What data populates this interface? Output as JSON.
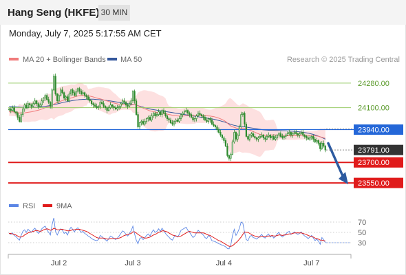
{
  "header": {
    "title": "Hang Seng (HKFE)",
    "timeframe": "30 MIN",
    "datetime": "Monday, July 7, 2025 5:17:55 AM CET"
  },
  "legend": {
    "ma20": "MA 20 + Bollinger Bands",
    "ma50": "MA 50",
    "credit": "Research © 2025 Trading Central",
    "rsi": "RSI",
    "ma9": "9MA"
  },
  "colors": {
    "ma20": "#f07b7b",
    "ma50": "#34579c",
    "band": "#fde0e0",
    "candle": "#2e8b2e",
    "resistance": "#99cc66",
    "pivot": "#2467d8",
    "support": "#e01b1b",
    "price": "#333333",
    "rsi": "#5b86e5",
    "rsi_ma": "#e01b1b",
    "arrow": "#2c5aa0"
  },
  "chart_data": [
    {
      "type": "candlestick",
      "x_labels": [
        "Jul 2",
        "Jul 3",
        "Jul 4",
        "Jul 7"
      ],
      "ylim": [
        23470,
        24400
      ],
      "levels": [
        {
          "value": 24280,
          "label": "24280.00",
          "kind": "resistance"
        },
        {
          "value": 24100,
          "label": "24100.00",
          "kind": "resistance"
        },
        {
          "value": 23940,
          "label": "23940.00",
          "kind": "pivot"
        },
        {
          "value": 23700,
          "label": "23700.00",
          "kind": "support"
        },
        {
          "value": 23550,
          "label": "23550.00",
          "kind": "support"
        }
      ],
      "last_price": {
        "value": 23791,
        "label": "23791.00"
      },
      "close": [
        24090,
        24080,
        24100,
        24070,
        24060,
        24030,
        24000,
        24050,
        24090,
        24120,
        24100,
        24130,
        24120,
        24110,
        24130,
        24150,
        24130,
        24110,
        24120,
        24150,
        24170,
        24190,
        24160,
        24140,
        24110,
        24230,
        24330,
        24200,
        24150,
        24190,
        24230,
        24210,
        24170,
        24180,
        24150,
        24200,
        24230,
        24210,
        24190,
        24220,
        24240,
        24220,
        24200,
        24210,
        24190,
        24180,
        24160,
        24150,
        24130,
        24120,
        24110,
        24100,
        24110,
        24140,
        24130,
        24110,
        24100,
        24080,
        24100,
        24120,
        24110,
        24100,
        24090,
        24100,
        24110,
        24130,
        24150,
        24140,
        24120,
        24110,
        24130,
        24150,
        24220,
        24150,
        24050,
        23960,
        23990,
        24000,
        23980,
        24000,
        24020,
        24030,
        24010,
        24040,
        24060,
        24040,
        24050,
        24070,
        24050,
        24080,
        24060,
        24040,
        24020,
        24010,
        23990,
        23980,
        24000,
        24010,
        24000,
        24020,
        24050,
        24060,
        24070,
        24080,
        24060,
        24050,
        24030,
        24010,
        24020,
        24040,
        24060,
        24050,
        24040,
        24030,
        24010,
        24000,
        24020,
        24010,
        23980,
        23970,
        23960,
        23940,
        23920,
        23900,
        23880,
        23860,
        23820,
        23750,
        23730,
        23760,
        23850,
        23920,
        23870,
        23900,
        23960,
        24050,
        24060,
        23980,
        23890,
        23870,
        23900,
        23910,
        23890,
        23880,
        23870,
        23880,
        23890,
        23900,
        23880,
        23870,
        23890,
        23900,
        23880,
        23890,
        23870,
        23880,
        23900,
        23910,
        23890,
        23880,
        23890,
        23900,
        23910,
        23920,
        23900,
        23910,
        23920,
        23910,
        23900,
        23910,
        23920,
        23900,
        23890,
        23880,
        23870,
        23880,
        23890,
        23870,
        23850,
        23860,
        23840,
        23800,
        23840,
        23820,
        23791
      ],
      "ma20": [
        24070,
        24070,
        24069,
        24068,
        24066,
        24064,
        24062,
        24061,
        24061,
        24062,
        24064,
        24066,
        24068,
        24070,
        24073,
        24076,
        24079,
        24082,
        24086,
        24090,
        24095,
        24100,
        24104,
        24108,
        24112,
        24118,
        24126,
        24133,
        24138,
        24143,
        24148,
        24152,
        24156,
        24160,
        24163,
        24167,
        24171,
        24175,
        24179,
        24183,
        24186,
        24188,
        24189,
        24190,
        24190,
        24189,
        24187,
        24185,
        24182,
        24179,
        24175,
        24171,
        24168,
        24165,
        24161,
        24157,
        24153,
        24149,
        24145,
        24141,
        24138,
        24134,
        24131,
        24128,
        24125,
        24123,
        24122,
        24121,
        24120,
        24119,
        24119,
        24120,
        24122,
        24123,
        24120,
        24114,
        24108,
        24103,
        24097,
        24092,
        24087,
        24082,
        24077,
        24074,
        24071,
        24068,
        24065,
        24063,
        24061,
        24059,
        24057,
        24055,
        24053,
        24050,
        24048,
        24045,
        24043,
        24041,
        24040,
        24039,
        24039,
        24039,
        24040,
        24041,
        24041,
        24042,
        24042,
        24042,
        24042,
        24043,
        24044,
        24044,
        24044,
        24043,
        24042,
        24041,
        24040,
        24039,
        24037,
        24035,
        24032,
        24028,
        24024,
        24019,
        24013,
        24007,
        23999,
        23988,
        23976,
        23966,
        23960,
        23957,
        23952,
        23948,
        23947,
        23949,
        23951,
        23950,
        23946,
        23941,
        23936,
        23931,
        23926,
        23921,
        23915,
        23910,
        23905,
        23902,
        23900,
        23898,
        23897,
        23898,
        23900,
        23902,
        23902,
        23901,
        23900,
        23900,
        23899,
        23898,
        23897,
        23896,
        23895,
        23895,
        23895,
        23895,
        23895,
        23896,
        23897,
        23897,
        23898,
        23898,
        23898,
        23898,
        23898,
        23898,
        23898,
        23897,
        23895,
        23893,
        23891,
        23887,
        23884,
        23880,
        23876
      ],
      "ma50": [
        24110,
        24109,
        24108,
        24107,
        24106,
        24105,
        24104,
        24103,
        24103,
        24102,
        24102,
        24102,
        24102,
        24102,
        24102,
        24103,
        24103,
        24104,
        24105,
        24106,
        24108,
        24110,
        24112,
        24114,
        24116,
        24119,
        24122,
        24125,
        24128,
        24131,
        24134,
        24137,
        24140,
        24143,
        24145,
        24148,
        24150,
        24152,
        24154,
        24156,
        24157,
        24159,
        24160,
        24161,
        24161,
        24162,
        24162,
        24162,
        24162,
        24162,
        24161,
        24160,
        24159,
        24158,
        24157,
        24156,
        24154,
        24152,
        24151,
        24149,
        24147,
        24145,
        24143,
        24141,
        24139,
        24137,
        24135,
        24133,
        24131,
        24129,
        24127,
        24125,
        24124,
        24122,
        24119,
        24115,
        24111,
        24107,
        24104,
        24100,
        24097,
        24094,
        24091,
        24088,
        24086,
        24084,
        24082,
        24080,
        24078,
        24076,
        24074,
        24072,
        24070,
        24068,
        24066,
        24064,
        24062,
        24060,
        24058,
        24056,
        24054,
        24052,
        24050,
        24048,
        24046,
        24044,
        24042,
        24040,
        24038,
        24036,
        24034,
        24032,
        24030,
        24028,
        24026,
        24024,
        24022,
        24020,
        24018,
        24016,
        24013,
        24010,
        24007,
        24004,
        24000,
        23997,
        23993,
        23988,
        23983,
        23978,
        23974,
        23971,
        23968,
        23965,
        23963,
        23962,
        23961,
        23960,
        23958,
        23956,
        23954,
        23952,
        23950,
        23948,
        23946,
        23944,
        23942,
        23940,
        23938,
        23937,
        23936,
        23935,
        23935,
        23935,
        23935,
        23934,
        23934,
        23933,
        23933,
        23932,
        23932,
        23931,
        23930,
        23930,
        23929,
        23928,
        23927,
        23926,
        23925,
        23924,
        23922,
        23920,
        23918,
        23916,
        23914,
        23911,
        23908,
        23905,
        23901,
        23897,
        23892,
        23887,
        23882,
        23876,
        23870
      ]
    },
    {
      "type": "line",
      "name": "RSI",
      "ylim": [
        10,
        90
      ],
      "y_ticks": [
        70,
        50,
        30
      ],
      "rsi": [
        48,
        46,
        49,
        44,
        42,
        38,
        35,
        44,
        52,
        55,
        50,
        56,
        53,
        50,
        55,
        58,
        53,
        48,
        51,
        57,
        60,
        62,
        55,
        50,
        45,
        65,
        78,
        52,
        45,
        52,
        57,
        54,
        48,
        50,
        45,
        55,
        60,
        56,
        51,
        56,
        59,
        54,
        50,
        52,
        48,
        46,
        43,
        41,
        38,
        36,
        35,
        34,
        36,
        44,
        42,
        38,
        36,
        33,
        38,
        43,
        41,
        38,
        36,
        39,
        43,
        48,
        53,
        51,
        46,
        43,
        48,
        53,
        62,
        47,
        35,
        28,
        38,
        40,
        36,
        40,
        44,
        47,
        43,
        50,
        55,
        50,
        52,
        57,
        52,
        58,
        53,
        48,
        44,
        41,
        37,
        35,
        41,
        44,
        41,
        46,
        54,
        56,
        58,
        60,
        54,
        50,
        45,
        40,
        43,
        49,
        54,
        51,
        48,
        45,
        40,
        38,
        44,
        41,
        34,
        33,
        32,
        30,
        28,
        27,
        25,
        24,
        22,
        19,
        18,
        26,
        44,
        56,
        44,
        50,
        58,
        70,
        68,
        50,
        36,
        34,
        42,
        44,
        40,
        39,
        37,
        40,
        43,
        46,
        41,
        39,
        44,
        47,
        41,
        44,
        39,
        42,
        47,
        50,
        44,
        41,
        44,
        47,
        50,
        52,
        46,
        48,
        51,
        48,
        46,
        48,
        51,
        46,
        43,
        41,
        38,
        41,
        44,
        39,
        34,
        37,
        33,
        27,
        40,
        36,
        30
      ],
      "rsi_ma": [
        48,
        48,
        47,
        46,
        45,
        43,
        41,
        41,
        42,
        45,
        47,
        49,
        50,
        51,
        52,
        53,
        54,
        53,
        52,
        53,
        55,
        56,
        57,
        56,
        54,
        55,
        58,
        57,
        55,
        55,
        56,
        56,
        55,
        54,
        53,
        53,
        54,
        55,
        55,
        56,
        56,
        56,
        55,
        54,
        53,
        52,
        50,
        48,
        46,
        44,
        42,
        40,
        39,
        39,
        39,
        39,
        38,
        37,
        37,
        38,
        38,
        38,
        38,
        38,
        39,
        40,
        42,
        44,
        45,
        46,
        47,
        48,
        51,
        51,
        49,
        46,
        44,
        42,
        40,
        39,
        39,
        40,
        41,
        43,
        45,
        46,
        48,
        50,
        51,
        53,
        53,
        52,
        51,
        49,
        47,
        45,
        44,
        43,
        42,
        42,
        43,
        45,
        47,
        49,
        51,
        52,
        51,
        50,
        49,
        49,
        49,
        49,
        49,
        49,
        48,
        46,
        45,
        44,
        42,
        40,
        38,
        36,
        34,
        33,
        31,
        29,
        27,
        25,
        23,
        23,
        24,
        27,
        30,
        33,
        37,
        41,
        46,
        51,
        50,
        50,
        48,
        46,
        44,
        43,
        42,
        41,
        41,
        42,
        42,
        42,
        42,
        43,
        43,
        44,
        43,
        43,
        44,
        45,
        45,
        44,
        45,
        45,
        46,
        47,
        47,
        48,
        49,
        49,
        49,
        49,
        49,
        48,
        47,
        46,
        44,
        43,
        42,
        41,
        39,
        38,
        37,
        35,
        35,
        34,
        33
      ]
    }
  ]
}
